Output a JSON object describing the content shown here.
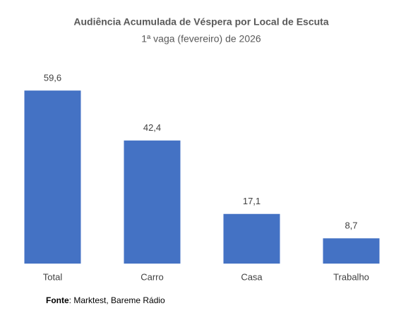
{
  "chart_data": {
    "type": "bar",
    "title": "Audiência Acumulada de Véspera por Local de Escuta",
    "subtitle": "1ª vaga (fevereiro) de 2026",
    "categories": [
      "Total",
      "Carro",
      "Casa",
      "Trabalho"
    ],
    "values": [
      59.6,
      42.4,
      17.1,
      8.7
    ],
    "value_labels": [
      "59,6",
      "42,4",
      "17,1",
      "8,7"
    ],
    "color": "#4472c4",
    "ylim": [
      0,
      60
    ],
    "source": {
      "label": "Fonte",
      "text": ": Marktest, Bareme Rádio"
    }
  }
}
